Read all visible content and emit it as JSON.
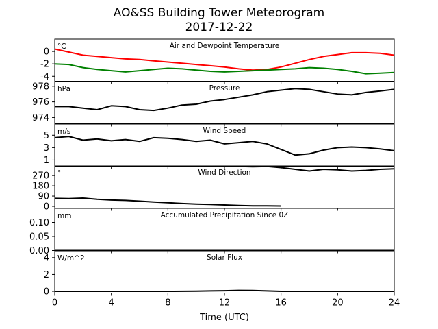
{
  "title": "AO&SS Building Tower Meteorogram",
  "subtitle": "2017-12-22",
  "xlabel": "Time (UTC)",
  "chart_data": {
    "type": "line",
    "x_ticks": [
      0,
      4,
      8,
      12,
      16,
      20,
      24
    ],
    "xlim": [
      0,
      24
    ],
    "panels": [
      {
        "id": "temperature",
        "title": "Air and Dewpoint Temperature",
        "unit": "°C",
        "ylim": [
          -4.8,
          2.0
        ],
        "yticks": [
          0,
          -2,
          -4
        ],
        "series": [
          {
            "color": "#ff0000",
            "x": [
              0,
              1,
              2,
              3,
              4,
              5,
              6,
              7,
              8,
              9,
              10,
              11,
              12,
              13,
              14,
              15,
              16,
              17,
              18,
              19,
              20,
              21,
              22,
              23,
              24
            ],
            "values": [
              0.4,
              -0.1,
              -0.6,
              -0.8,
              -1.0,
              -1.2,
              -1.3,
              -1.5,
              -1.7,
              -1.9,
              -2.1,
              -2.3,
              -2.5,
              -2.8,
              -3.0,
              -2.9,
              -2.5,
              -1.9,
              -1.3,
              -0.8,
              -0.5,
              -0.2,
              -0.2,
              -0.3,
              -0.6
            ]
          },
          {
            "color": "#008000",
            "x": [
              0,
              1,
              2,
              3,
              4,
              5,
              6,
              7,
              8,
              9,
              10,
              11,
              12,
              13,
              14,
              15,
              16,
              17,
              18,
              19,
              20,
              21,
              22,
              23,
              24
            ],
            "values": [
              -2.0,
              -2.1,
              -2.6,
              -2.9,
              -3.1,
              -3.3,
              -3.1,
              -2.9,
              -2.7,
              -2.8,
              -3.0,
              -3.2,
              -3.3,
              -3.2,
              -3.1,
              -3.0,
              -2.9,
              -2.8,
              -2.6,
              -2.7,
              -2.9,
              -3.2,
              -3.6,
              -3.5,
              -3.4
            ]
          }
        ]
      },
      {
        "id": "pressure",
        "title": "Pressure",
        "unit": "hPa",
        "ylim": [
          973.2,
          978.6
        ],
        "yticks": [
          978,
          976,
          974
        ],
        "series": [
          {
            "color": "#000000",
            "x": [
              0,
              1,
              2,
              3,
              4,
              5,
              6,
              7,
              8,
              9,
              10,
              11,
              12,
              13,
              14,
              15,
              16,
              17,
              18,
              19,
              20,
              21,
              22,
              23,
              24
            ],
            "values": [
              975.4,
              975.4,
              975.2,
              975.0,
              975.5,
              975.4,
              975.0,
              974.9,
              975.2,
              975.6,
              975.7,
              976.1,
              976.3,
              976.6,
              976.9,
              977.3,
              977.5,
              977.7,
              977.6,
              977.3,
              977.0,
              976.9,
              977.2,
              977.4,
              977.6
            ]
          }
        ]
      },
      {
        "id": "wind_speed",
        "title": "Wind Speed",
        "unit": "m/s",
        "ylim": [
          0,
          6.8
        ],
        "yticks": [
          5,
          3,
          1
        ],
        "series": [
          {
            "color": "#000000",
            "x": [
              0,
              1,
              2,
              3,
              4,
              5,
              6,
              7,
              8,
              9,
              10,
              11,
              12,
              13,
              14,
              15,
              16,
              17,
              18,
              19,
              20,
              21,
              22,
              23,
              24
            ],
            "values": [
              4.6,
              4.8,
              4.2,
              4.4,
              4.1,
              4.3,
              4.0,
              4.6,
              4.5,
              4.3,
              4.0,
              4.2,
              3.6,
              3.8,
              4.0,
              3.6,
              2.7,
              1.8,
              2.0,
              2.6,
              3.0,
              3.1,
              3.0,
              2.8,
              2.5
            ]
          }
        ]
      },
      {
        "id": "wind_direction",
        "title": "Wind Direction",
        "unit": "°",
        "ylim": [
          -15,
          355
        ],
        "yticks": [
          270,
          180,
          90,
          0
        ],
        "series": [
          {
            "color": "#000000",
            "x": [
              0,
              1,
              2,
              3,
              4,
              5,
              6,
              7,
              8,
              9,
              10,
              11,
              12,
              13,
              14,
              15,
              16,
              17,
              18,
              19,
              20,
              21,
              22,
              23,
              24
            ],
            "values": [
              70,
              68,
              72,
              62,
              55,
              52,
              45,
              38,
              32,
              25,
              20,
              16,
              12,
              8,
              5,
              4,
              3,
              null,
              null,
              null,
              null,
              null,
              null,
              null,
              null
            ]
          },
          {
            "color": "#000000",
            "x": [
              11,
              12,
              13,
              14,
              15,
              16,
              17,
              18,
              19,
              20,
              21,
              22,
              23,
              24
            ],
            "values": [
              350,
              352,
              350,
              348,
              350,
              340,
              325,
              310,
              325,
              320,
              310,
              315,
              325,
              330
            ]
          }
        ]
      },
      {
        "id": "precipitation",
        "title": "Accumulated Precipitation Since 0Z",
        "unit": "mm",
        "ylim": [
          0,
          0.15
        ],
        "yticks": [
          0.1,
          0.05,
          0.0
        ],
        "series": [
          {
            "color": "#000000",
            "x": [
              0,
              24
            ],
            "values": [
              0,
              0
            ]
          }
        ]
      },
      {
        "id": "solar_flux",
        "title": "Solar Flux",
        "unit": "W/m^2",
        "ylim": [
          -0.2,
          4.8
        ],
        "yticks": [
          4,
          2,
          0
        ],
        "series": [
          {
            "color": "#000000",
            "x": [
              0,
              8,
              10,
              11,
              12,
              13,
              14,
              15,
              16,
              24
            ],
            "values": [
              0,
              0,
              0.02,
              0.05,
              0.08,
              0.12,
              0.1,
              0.05,
              0,
              0
            ]
          }
        ]
      }
    ]
  }
}
